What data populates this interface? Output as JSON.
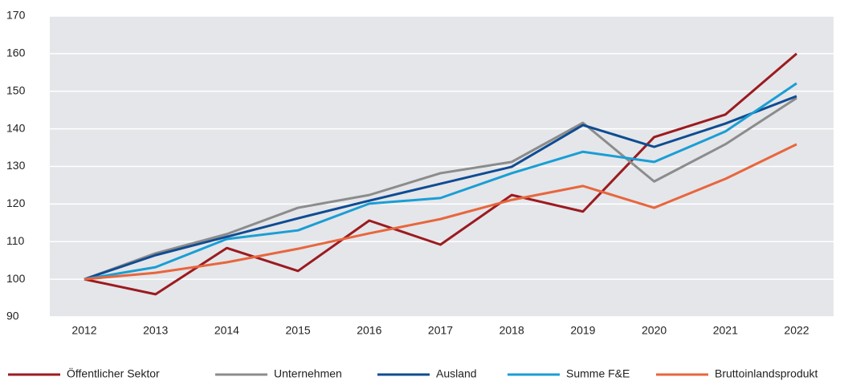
{
  "chart_data": {
    "type": "line",
    "categories": [
      "2012",
      "2013",
      "2014",
      "2015",
      "2016",
      "2017",
      "2018",
      "2019",
      "2020",
      "2021",
      "2022"
    ],
    "series": [
      {
        "name": "Öffentlicher Sektor",
        "color": "#9b1b1f",
        "values": [
          100,
          96,
          108.3,
          102.2,
          115.6,
          109.2,
          122.4,
          118,
          137.8,
          143.8,
          160
        ]
      },
      {
        "name": "Unternehmen",
        "color": "#8c8c8c",
        "values": [
          100,
          106.9,
          112,
          119,
          122.4,
          128.2,
          131.2,
          141.6,
          126,
          135.9,
          148.2
        ]
      },
      {
        "name": "Ausland",
        "color": "#0f4c92",
        "values": [
          100,
          106.4,
          111.3,
          116.2,
          120.9,
          125.4,
          129.9,
          141,
          135.2,
          141.4,
          148.7
        ]
      },
      {
        "name": "Summe F&E",
        "color": "#1a9ed4",
        "values": [
          100,
          103.2,
          110.7,
          113,
          120.1,
          121.6,
          128.2,
          133.9,
          131.2,
          139.3,
          152.1
        ]
      },
      {
        "name": "Bruttoinlandsprodukt",
        "color": "#e8663d",
        "values": [
          100,
          101.7,
          104.5,
          108.1,
          112.2,
          116,
          121.1,
          124.8,
          119,
          126.7,
          135.9
        ]
      }
    ],
    "ylim": [
      90,
      170
    ],
    "yticks": [
      90,
      100,
      110,
      120,
      130,
      140,
      150,
      160,
      170
    ],
    "grid": true,
    "legend": "bottom"
  }
}
